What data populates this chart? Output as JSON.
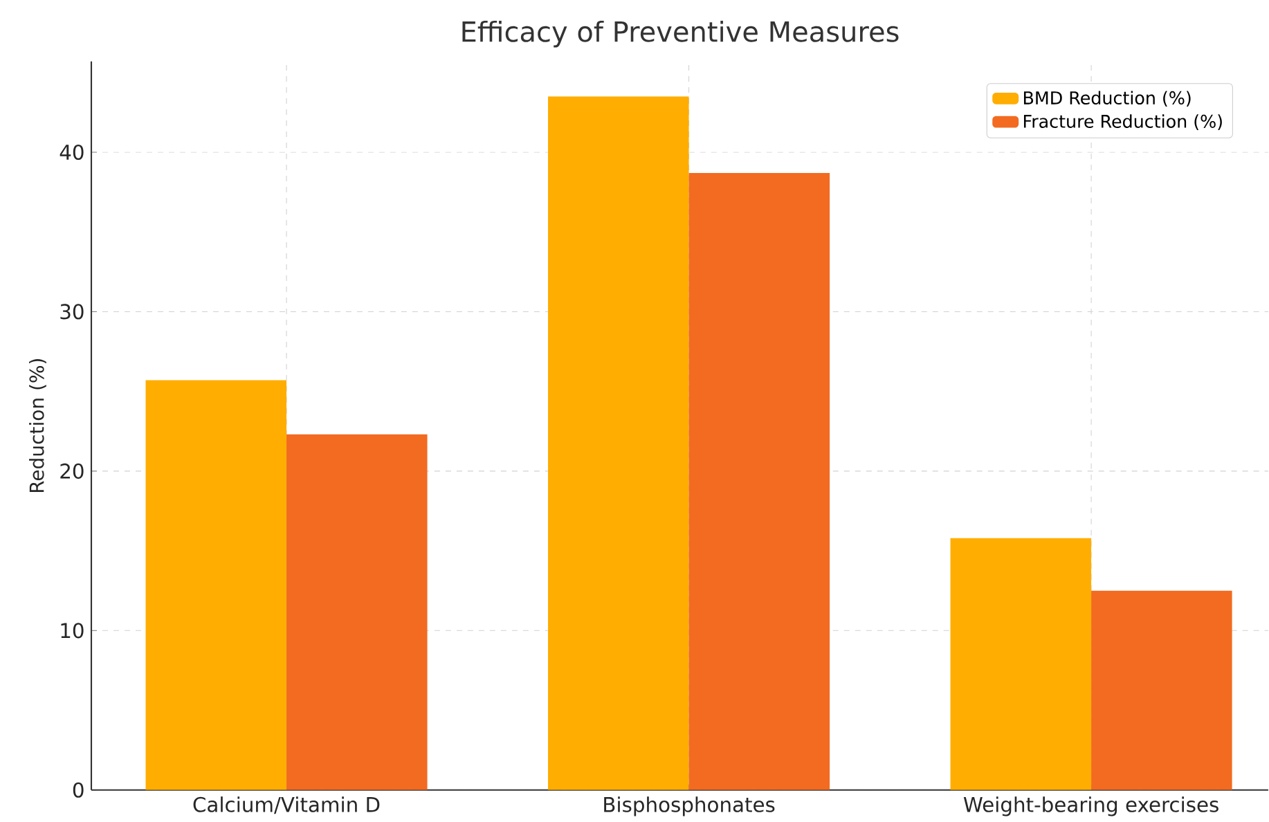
{
  "chart_data": {
    "type": "bar",
    "title": "Efficacy of Preventive Measures",
    "ylabel": "Reduction (%)",
    "categories": [
      "Calcium/Vitamin D",
      "Bisphosphonates",
      "Weight-bearing exercises"
    ],
    "series": [
      {
        "name": "BMD Reduction (%)",
        "color": "#ffad00",
        "values": [
          25.7,
          43.5,
          15.8
        ]
      },
      {
        "name": "Fracture Reduction (%)",
        "color": "#f26b21",
        "values": [
          22.3,
          38.7,
          12.5
        ]
      }
    ],
    "ylim": [
      0,
      45.7
    ],
    "yticks": [
      0,
      10,
      20,
      30,
      40
    ],
    "grid": true,
    "legend": "top right"
  }
}
